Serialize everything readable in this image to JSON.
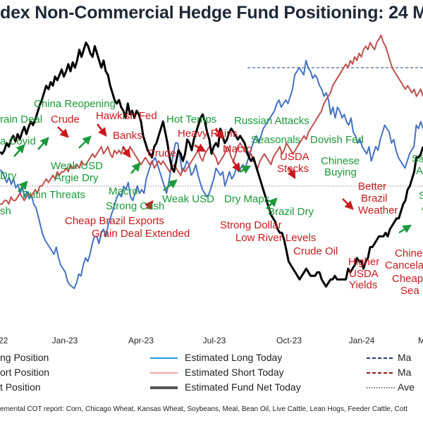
{
  "chart_data": {
    "type": "line",
    "title": "dex Non-Commercial Hedge Fund Positioning: 24 M",
    "xlabel": "",
    "ylabel": "",
    "x_ticks": [
      "22",
      "Jan-23",
      "Apr-23",
      "Jul-23",
      "Oct-23",
      "Jan-24",
      "M"
    ],
    "grid": false,
    "legend_position": "bottom",
    "legend": [
      {
        "label": "ng Position",
        "color": "#4472c4",
        "style": "solid"
      },
      {
        "label": "Estimated Long Today",
        "color": "#1e9bd7",
        "style": "solid"
      },
      {
        "label": "Ma",
        "color": "#1f3b73",
        "style": "dashed"
      },
      {
        "label": "ort Position",
        "color": "#c0504d",
        "style": "solid"
      },
      {
        "label": "Estimated Short Today",
        "color": "#f4a6a6",
        "style": "solid"
      },
      {
        "label": "Ma",
        "color": "#8b1a1a",
        "style": "dashed"
      },
      {
        "label": "t Position",
        "color": "#000000",
        "style": "solid"
      },
      {
        "label": "Estimated Fund Net Today",
        "color": "#555555",
        "style": "solid"
      },
      {
        "label": "Ave",
        "color": "#777777",
        "style": "dotted"
      }
    ],
    "series": [
      {
        "name": "Long Position",
        "color": "#4472c4",
        "values": [
          71,
          70,
          67,
          64,
          67,
          63,
          66,
          61,
          63,
          58,
          61,
          56,
          59,
          55,
          57,
          52,
          50,
          45,
          40,
          35,
          32,
          30,
          28,
          26,
          24,
          28,
          22,
          18,
          16,
          14,
          9,
          7,
          6,
          5,
          8,
          13,
          12,
          18,
          22,
          20,
          24,
          30,
          34,
          34,
          30,
          36,
          38,
          34,
          40,
          44,
          48,
          52,
          56,
          58,
          56,
          62,
          60,
          64,
          56,
          54,
          58,
          62,
          58,
          60,
          58,
          66,
          70,
          74,
          76,
          78,
          74,
          70,
          66,
          62,
          58,
          64,
          72,
          80,
          86,
          86,
          78,
          70,
          72,
          76,
          74,
          68,
          70,
          74,
          68,
          64,
          60,
          58,
          56,
          58,
          62,
          66,
          72,
          70,
          68,
          70,
          62,
          66,
          70,
          66,
          68,
          72,
          70,
          72,
          74,
          72,
          76,
          80,
          84,
          88,
          90,
          86,
          90,
          94,
          96,
          98,
          100,
          102,
          104,
          108,
          110,
          106,
          108,
          110,
          108,
          112,
          116,
          124,
          126,
          128,
          126,
          124,
          132,
          128,
          126,
          122,
          124,
          122,
          118,
          116,
          112,
          114,
          110,
          102,
          106,
          100,
          106,
          104,
          100,
          102,
          98,
          96,
          100,
          92,
          90,
          86,
          88,
          84,
          82,
          80,
          84,
          76,
          80,
          84,
          82,
          88,
          92,
          96,
          94,
          92,
          86,
          88,
          82,
          78,
          76,
          74,
          72,
          76,
          80,
          82,
          84,
          96,
          94,
          98,
          94
        ]
      },
      {
        "name": "Short Position",
        "color": "#c0504d",
        "values": [
          52,
          52,
          54,
          54,
          52,
          56,
          54,
          54,
          56,
          58,
          56,
          54,
          56,
          58,
          56,
          58,
          60,
          58,
          62,
          62,
          64,
          66,
          64,
          66,
          68,
          66,
          70,
          68,
          70,
          70,
          72,
          70,
          74,
          72,
          72,
          74,
          72,
          76,
          74,
          74,
          76,
          78,
          80,
          78,
          80,
          82,
          84,
          80,
          82,
          84,
          80,
          78,
          82,
          80,
          82,
          80,
          84,
          82,
          80,
          84,
          82,
          80,
          78,
          76,
          74,
          76,
          78,
          76,
          74,
          76,
          72,
          74,
          76,
          74,
          76,
          74,
          72,
          70,
          72,
          74,
          72,
          70,
          68,
          72,
          70,
          72,
          74,
          76,
          78,
          80,
          82,
          78,
          76,
          80,
          82,
          84,
          82,
          80,
          78,
          74,
          76,
          78,
          80,
          84,
          82,
          78,
          76,
          80,
          84,
          86,
          84,
          82,
          80,
          78,
          80,
          76,
          74,
          72,
          76,
          78,
          80,
          78,
          76,
          74,
          78,
          80,
          82,
          84,
          80,
          82,
          86,
          84,
          82,
          80,
          82,
          84,
          86,
          88,
          90,
          88,
          92,
          94,
          96,
          98,
          100,
          102,
          104,
          108,
          110,
          112,
          114,
          118,
          120,
          122,
          124,
          126,
          128,
          130,
          128,
          132,
          130,
          134,
          132,
          136,
          134,
          138,
          140,
          138,
          142,
          140,
          138,
          142,
          144,
          146,
          142,
          140,
          136,
          132,
          128,
          126,
          124,
          122,
          120,
          118,
          116,
          118,
          116,
          114,
          116,
          112,
          114,
          116,
          112
        ]
      },
      {
        "name": "Net Position",
        "color": "#000000",
        "values": [
          81,
          80,
          82,
          86,
          84,
          88,
          90,
          87,
          91,
          88,
          92,
          95,
          91,
          95,
          98,
          96,
          99,
          103,
          107,
          110,
          114,
          118,
          116,
          120,
          118,
          123,
          121,
          124,
          127,
          123,
          126,
          130,
          126,
          131,
          128,
          132,
          138,
          134,
          138,
          142,
          140,
          136,
          134,
          140,
          136,
          132,
          128,
          132,
          126,
          124,
          118,
          114,
          110,
          108,
          110,
          106,
          104,
          100,
          108,
          102,
          104,
          100,
          104,
          102,
          98,
          90,
          86,
          82,
          80,
          78,
          84,
          86,
          90,
          94,
          98,
          92,
          86,
          78,
          72,
          70,
          76,
          82,
          80,
          76,
          80,
          88,
          86,
          82,
          88,
          92,
          96,
          100,
          102,
          98,
          92,
          88,
          80,
          84,
          86,
          84,
          94,
          90,
          86,
          88,
          92,
          94,
          92,
          90,
          88,
          90,
          88,
          86,
          82,
          78,
          76,
          78,
          74,
          70,
          66,
          62,
          58,
          54,
          50,
          46,
          44,
          42,
          38,
          36,
          36,
          32,
          26,
          20,
          18,
          16,
          14,
          12,
          10,
          12,
          14,
          16,
          14,
          12,
          12,
          12,
          14,
          14,
          10,
          8,
          6,
          8,
          10,
          10,
          12,
          10,
          10,
          10,
          10,
          10,
          16,
          14,
          16,
          18,
          22,
          20,
          20,
          16,
          20,
          22,
          28,
          28,
          30,
          32,
          34,
          34,
          34,
          36,
          34,
          38,
          40,
          42,
          44,
          44,
          48,
          52,
          54,
          60,
          62,
          66,
          70,
          78,
          78,
          80,
          84
        ]
      }
    ],
    "max_long_reference": {
      "value": 128,
      "style": "dashed"
    },
    "max_short_reference": {
      "value": 146,
      "style": "dashed"
    },
    "average_net_reference": {
      "value": 62,
      "style": "dotted"
    },
    "ylim": [
      -15,
      150
    ],
    "annotations": [
      {
        "text": "rain Deal",
        "color": "green"
      },
      {
        "text": "Crude",
        "color": "red"
      },
      {
        "text": "China Reopening",
        "color": "green"
      },
      {
        "text": "Hawkish Fed",
        "color": "red"
      },
      {
        "text": "Hot Temps",
        "color": "green"
      },
      {
        "text": "Russian Attacks",
        "color": "green"
      },
      {
        "text": "a Covid",
        "color": "green"
      },
      {
        "text": "Banks",
        "color": "red"
      },
      {
        "text": "Heavy Rains",
        "color": "red"
      },
      {
        "text": "Seasonals",
        "color": "green"
      },
      {
        "text": "Dovish Fed",
        "color": "green"
      },
      {
        "text": "Crude",
        "color": "red"
      },
      {
        "text": "Macro",
        "color": "red"
      },
      {
        "text": "USDA",
        "color": "red"
      },
      {
        "text": "Stocks",
        "color": "red"
      },
      {
        "text": "Chinese",
        "color": "green"
      },
      {
        "text": "Buying",
        "color": "green"
      },
      {
        "text": "S&",
        "color": "green"
      },
      {
        "text": "All-Ti",
        "color": "green"
      },
      {
        "text": "Weak USD",
        "color": "green"
      },
      {
        "text": "Argie Dry",
        "color": "green"
      },
      {
        "text": "Dry",
        "color": "green"
      },
      {
        "text": "Putin Threats",
        "color": "green"
      },
      {
        "text": "Macro",
        "color": "green"
      },
      {
        "text": "Strong Cash",
        "color": "green"
      },
      {
        "text": "Weak USD",
        "color": "green"
      },
      {
        "text": "Dry Maps",
        "color": "green"
      },
      {
        "text": "Brazil Dry",
        "color": "green"
      },
      {
        "text": "Better",
        "color": "red"
      },
      {
        "text": "Brazil",
        "color": "red"
      },
      {
        "text": "Weather",
        "color": "red"
      },
      {
        "text": "Smal",
        "color": "green"
      },
      {
        "text": "Acre",
        "color": "green"
      },
      {
        "text": "sh",
        "color": "green"
      },
      {
        "text": "Cheap Brazil Exports",
        "color": "red"
      },
      {
        "text": "Grain Deal Extended",
        "color": "red"
      },
      {
        "text": "Strong Dollar",
        "color": "red"
      },
      {
        "text": "Low River Levels",
        "color": "red"
      },
      {
        "text": "Crude Oil",
        "color": "red"
      },
      {
        "text": "Higher",
        "color": "red"
      },
      {
        "text": "USDA",
        "color": "red"
      },
      {
        "text": "Yields",
        "color": "red"
      },
      {
        "text": "Chine",
        "color": "red"
      },
      {
        "text": "Cancela",
        "color": "red"
      },
      {
        "text": "Cheap",
        "color": "red"
      },
      {
        "text": "Sea",
        "color": "red"
      }
    ]
  },
  "footnote": "emental COT report: Corn, Chicago Wheat, Kansas Wheat, Soybeans, Meal, Bean Oil, Live Cattle, Lean Hogs, Feeder Cattle, Cott"
}
